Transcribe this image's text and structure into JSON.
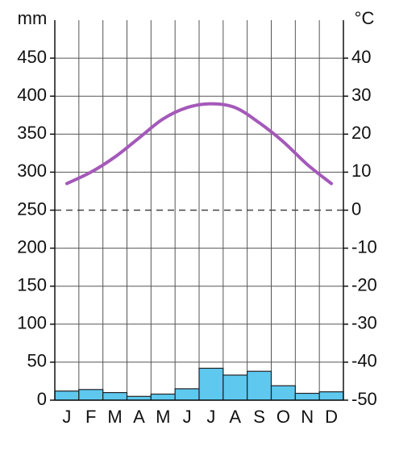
{
  "chart_data": {
    "type": "climate",
    "y_label": "mm",
    "y2_label": "°C",
    "categories": [
      "J",
      "F",
      "M",
      "A",
      "M",
      "J",
      "J",
      "A",
      "S",
      "O",
      "N",
      "D"
    ],
    "series": [
      {
        "type": "bar",
        "color": "#5ec8ef",
        "values": [
          12,
          14,
          10,
          5,
          8,
          15,
          42,
          33,
          38,
          19,
          9,
          11
        ]
      },
      {
        "type": "line",
        "axis": "y2",
        "color": "#a459b9",
        "values": [
          7,
          10,
          14,
          19,
          24,
          27,
          28,
          27,
          23,
          18,
          12,
          7
        ]
      }
    ],
    "ylim": [
      0,
      500
    ],
    "yticks": [
      0,
      50,
      100,
      150,
      200,
      250,
      300,
      350,
      400,
      450
    ],
    "y2lim": [
      -50,
      50
    ],
    "y2ticks": [
      -50,
      -40,
      -30,
      -20,
      -10,
      0,
      10,
      20,
      30,
      40
    ],
    "grid": true
  }
}
